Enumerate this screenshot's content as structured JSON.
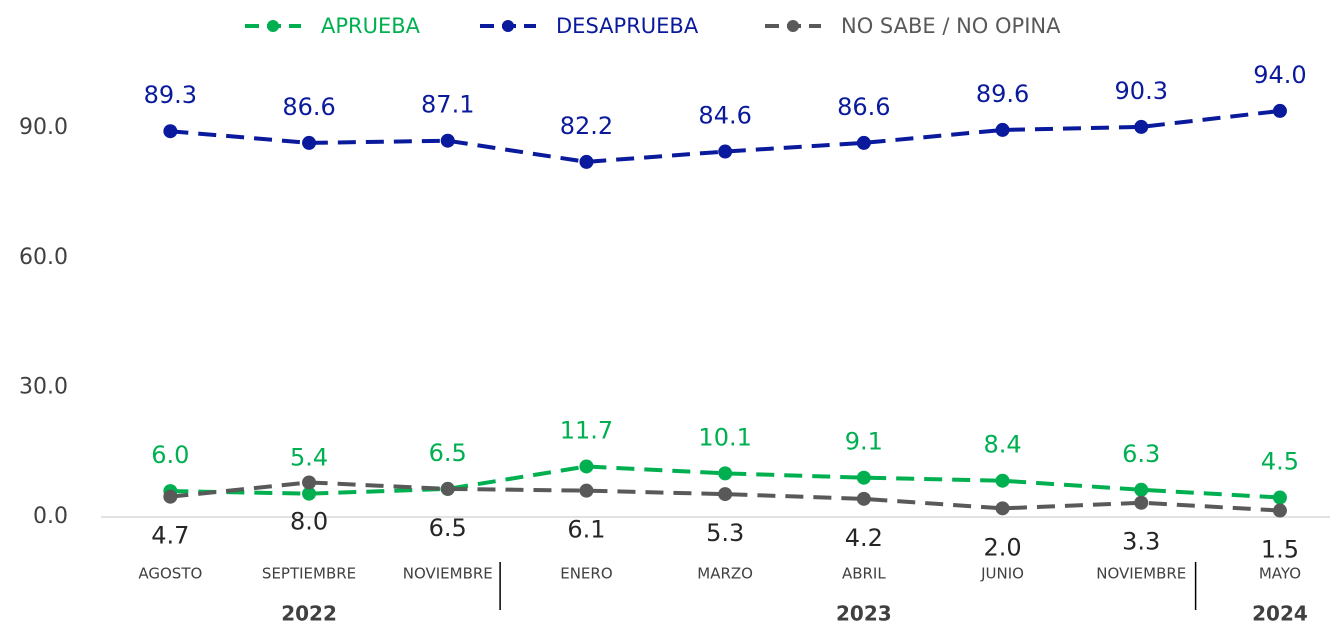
{
  "chart_data": {
    "type": "line",
    "categories": [
      "AGOSTO",
      "SEPTIEMBRE",
      "NOVIEMBRE",
      "ENERO",
      "MARZO",
      "ABRIL",
      "JUNIO",
      "NOVIEMBRE",
      "MAYO"
    ],
    "category_groups": [
      {
        "label": "2022",
        "count": 3
      },
      {
        "label": "2023",
        "count": 5
      },
      {
        "label": "2024",
        "count": 1
      }
    ],
    "series": [
      {
        "name": "APRUEBA",
        "color": "#00b050",
        "values": [
          6.0,
          5.4,
          6.5,
          11.7,
          10.1,
          9.1,
          8.4,
          6.3,
          4.5
        ],
        "value_labels": [
          "6.0",
          "5.4",
          "6.5",
          "11.7",
          "10.1",
          "9.1",
          "8.4",
          "6.3",
          "4.5"
        ]
      },
      {
        "name": "DESAPRUEBA",
        "color": "#0a1a9c",
        "values": [
          89.3,
          86.6,
          87.1,
          82.2,
          84.6,
          86.6,
          89.6,
          90.3,
          94.0
        ],
        "value_labels": [
          "89.3",
          "86.6",
          "87.1",
          "82.2",
          "84.6",
          "86.6",
          "89.6",
          "90.3",
          "94.0"
        ]
      },
      {
        "name": "NO SABE / NO OPINA",
        "color": "#595959",
        "values": [
          4.7,
          8.0,
          6.5,
          6.1,
          5.3,
          4.2,
          2.0,
          3.3,
          1.5
        ],
        "value_labels": [
          "4.7",
          "8.0",
          "6.5",
          "6.1",
          "5.3",
          "4.2",
          "2.0",
          "3.3",
          "1.5"
        ]
      }
    ],
    "ylim": [
      0,
      100
    ],
    "yticks": [
      {
        "value": 0,
        "label": "0.0"
      },
      {
        "value": 30,
        "label": "30.0"
      },
      {
        "value": 60,
        "label": "60.0"
      },
      {
        "value": 90,
        "label": "90.0"
      }
    ],
    "grid": false,
    "legend": "top"
  }
}
